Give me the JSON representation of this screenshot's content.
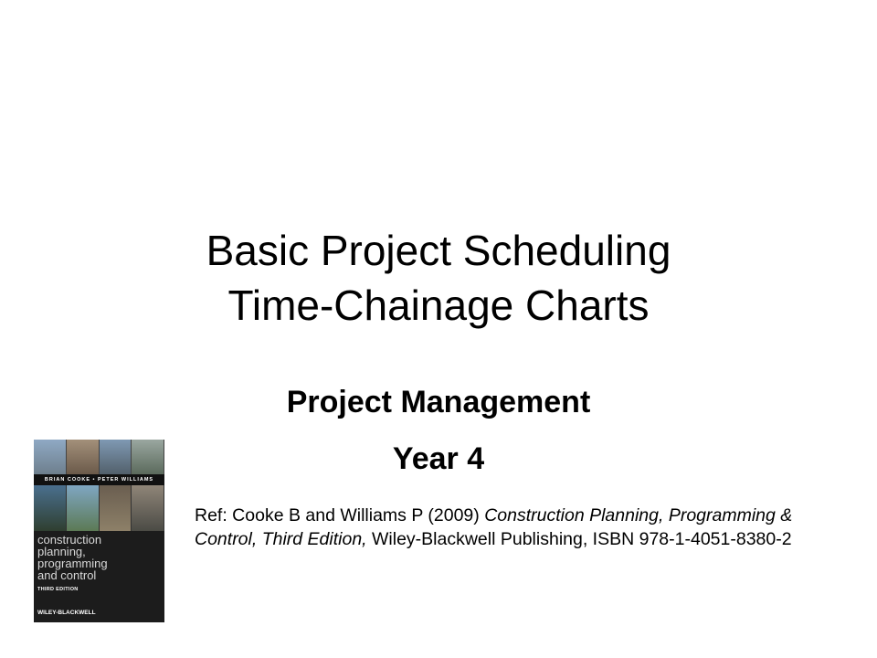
{
  "slide": {
    "title_line1": "Basic Project Scheduling",
    "title_line2": "Time-Chainage Charts",
    "subtitle_line1": "Project Management",
    "subtitle_line2": "Year 4",
    "reference": {
      "prefix": "Ref: Cooke B and Williams P (2009) ",
      "book_title": "Construction Planning, Programming & Control, Third Edition,",
      "suffix": " Wiley-Blackwell Publishing, ISBN 978-1-4051-8380-2"
    }
  },
  "book_cover": {
    "authors": "BRIAN COOKE • PETER WILLIAMS",
    "title_line1": "construction",
    "title_line2": "planning,",
    "title_line3": "programming",
    "title_line4": "and control",
    "edition": "THIRD EDITION",
    "publisher": "WILEY-BLACKWELL"
  }
}
